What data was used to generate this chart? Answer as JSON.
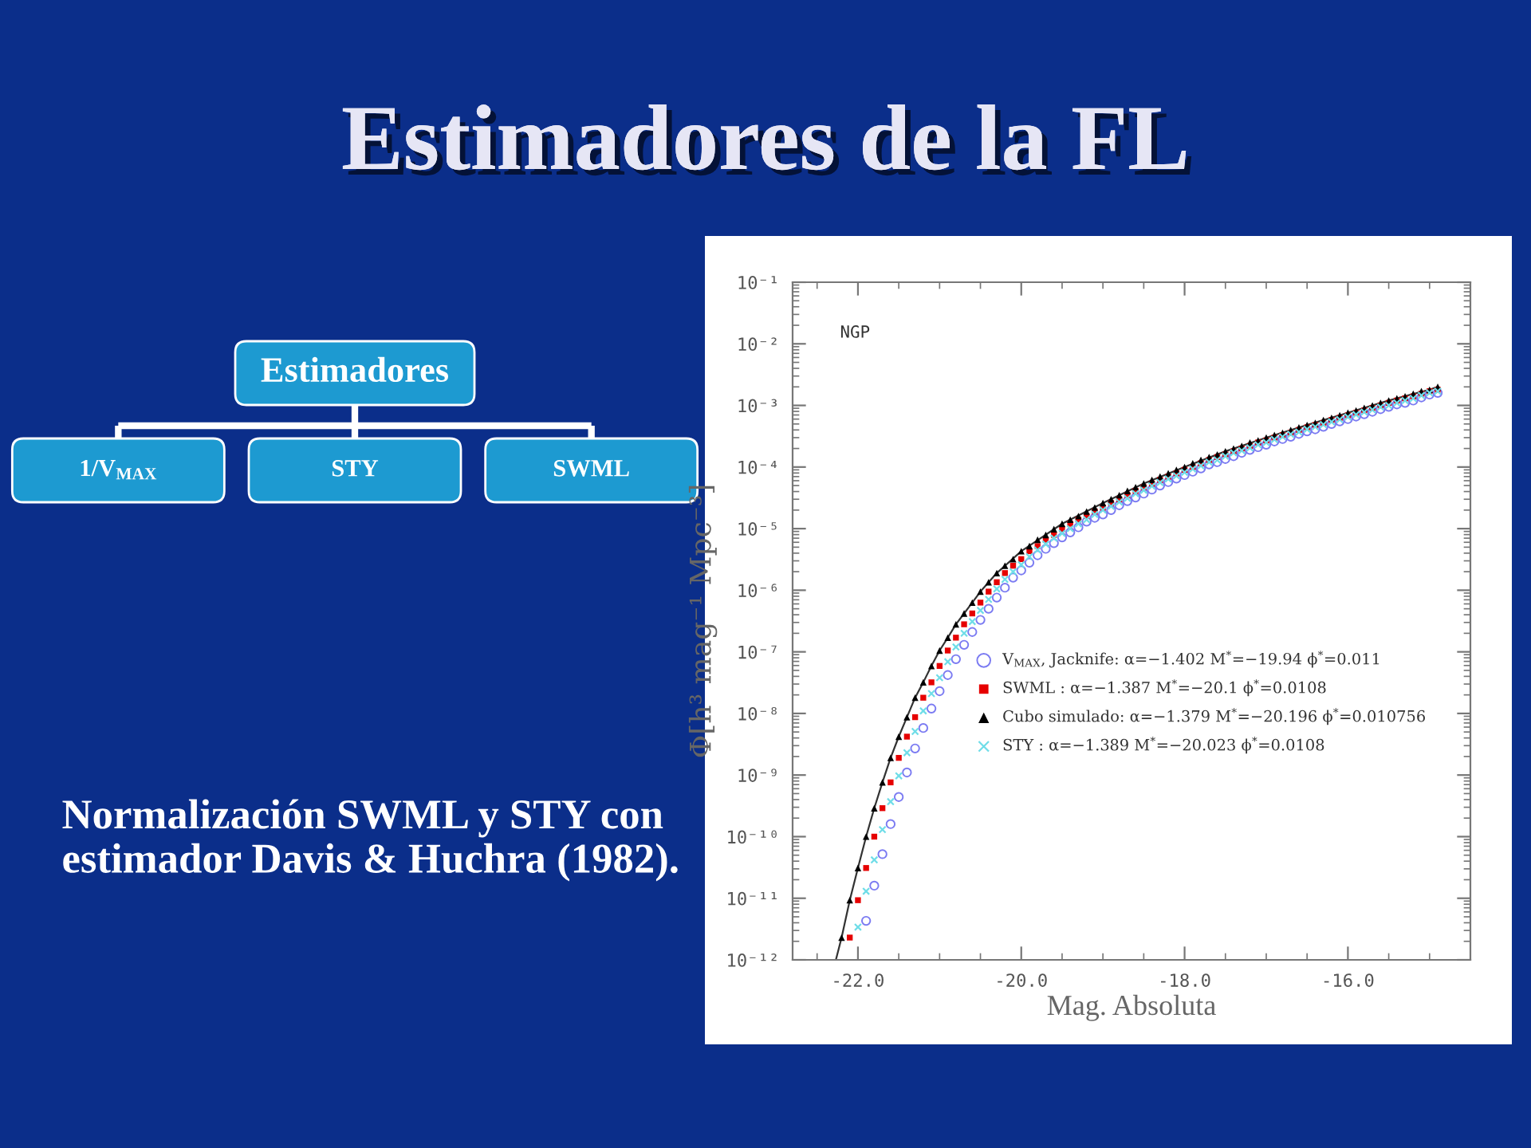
{
  "chart_data": [
    {
      "type": "other",
      "title": "Estimadores",
      "categories": [
        "1/V$_{MAX}$",
        "STY",
        "SWML"
      ]
    },
    {
      "type": "scatter",
      "title": "Estimadores de la FL",
      "xlabel": "Mag. Absoluta",
      "ylabel": "Φ[h³ mag⁻¹ Mpc⁻³]",
      "annotations": [
        "NGP",
        "Normalización SWML y STY con estimador Davis & Huchra (1982)."
      ],
      "log": "y",
      "xlim": [
        -22.8,
        -14.5
      ],
      "ylim": [
        1e-12,
        0.1
      ],
      "legend": "lower right",
      "xticks": [
        {
          "value": -22,
          "label": "-22.0"
        },
        {
          "value": -20,
          "label": "-20.0"
        },
        {
          "value": -18,
          "label": "-18.0"
        },
        {
          "value": -16,
          "label": "-16.0"
        },
        {
          "value": -22.5,
          "label": null
        },
        {
          "value": -21.5,
          "label": null
        },
        {
          "value": -21,
          "label": null
        },
        {
          "value": -20.5,
          "label": null
        },
        {
          "value": -19.5,
          "label": null
        },
        {
          "value": -19,
          "label": null
        },
        {
          "value": -18.5,
          "label": null
        },
        {
          "value": -17.5,
          "label": null
        },
        {
          "value": -17,
          "label": null
        },
        {
          "value": -16.5,
          "label": null
        },
        {
          "value": -15.5,
          "label": null
        },
        {
          "value": -15,
          "label": null
        }
      ],
      "yticks": [
        {
          "value": 1e-12,
          "label": "10⁻¹²"
        },
        {
          "value": 1e-11,
          "label": "10⁻¹¹"
        },
        {
          "value": 1e-10,
          "label": "10⁻¹⁰"
        },
        {
          "value": 1e-09,
          "label": "10⁻⁹"
        },
        {
          "value": 1e-08,
          "label": "10⁻⁸"
        },
        {
          "value": 1e-07,
          "label": "10⁻⁷"
        },
        {
          "value": 1e-06,
          "label": "10⁻⁶"
        },
        {
          "value": 1e-05,
          "label": "10⁻⁵"
        },
        {
          "value": 0.0001,
          "label": "10⁻⁴"
        },
        {
          "value": 0.001,
          "label": "10⁻³"
        },
        {
          "value": 0.01,
          "label": "10⁻²"
        },
        {
          "value": 0.1,
          "label": "10⁻¹"
        },
        {
          "value": 2e-12,
          "label": null
        },
        {
          "value": 3e-12,
          "label": null
        },
        {
          "value": 4e-12,
          "label": null
        },
        {
          "value": 5e-12,
          "label": null
        },
        {
          "value": 6e-12,
          "label": null
        },
        {
          "value": 7e-12,
          "label": null
        },
        {
          "value": 8e-12,
          "label": null
        },
        {
          "value": 9e-12,
          "label": null
        },
        {
          "value": 2e-11,
          "label": null
        },
        {
          "value": 3e-11,
          "label": null
        },
        {
          "value": 4e-11,
          "label": null
        },
        {
          "value": 5e-11,
          "label": null
        },
        {
          "value": 6e-11,
          "label": null
        },
        {
          "value": 7e-11,
          "label": null
        },
        {
          "value": 8e-11,
          "label": null
        },
        {
          "value": 9e-11,
          "label": null
        },
        {
          "value": 2e-10,
          "label": null
        },
        {
          "value": 3e-10,
          "label": null
        },
        {
          "value": 4e-10,
          "label": null
        },
        {
          "value": 5e-10,
          "label": null
        },
        {
          "value": 6e-10,
          "label": null
        },
        {
          "value": 7e-10,
          "label": null
        },
        {
          "value": 8e-10,
          "label": null
        },
        {
          "value": 9e-10,
          "label": null
        },
        {
          "value": 2e-09,
          "label": null
        },
        {
          "value": 3e-09,
          "label": null
        },
        {
          "value": 4e-09,
          "label": null
        },
        {
          "value": 5e-09,
          "label": null
        },
        {
          "value": 6e-09,
          "label": null
        },
        {
          "value": 7e-09,
          "label": null
        },
        {
          "value": 8e-09,
          "label": null
        },
        {
          "value": 9e-09,
          "label": null
        },
        {
          "value": 2e-08,
          "label": null
        },
        {
          "value": 3e-08,
          "label": null
        },
        {
          "value": 4e-08,
          "label": null
        },
        {
          "value": 5e-08,
          "label": null
        },
        {
          "value": 6e-08,
          "label": null
        },
        {
          "value": 7e-08,
          "label": null
        },
        {
          "value": 8e-08,
          "label": null
        },
        {
          "value": 9e-08,
          "label": null
        },
        {
          "value": 2e-07,
          "label": null
        },
        {
          "value": 3e-07,
          "label": null
        },
        {
          "value": 4e-07,
          "label": null
        },
        {
          "value": 5e-07,
          "label": null
        },
        {
          "value": 6e-07,
          "label": null
        },
        {
          "value": 7e-07,
          "label": null
        },
        {
          "value": 8e-07,
          "label": null
        },
        {
          "value": 9e-07,
          "label": null
        },
        {
          "value": 2e-06,
          "label": null
        },
        {
          "value": 3e-06,
          "label": null
        },
        {
          "value": 4e-06,
          "label": null
        },
        {
          "value": 5e-06,
          "label": null
        },
        {
          "value": 6e-06,
          "label": null
        },
        {
          "value": 7e-06,
          "label": null
        },
        {
          "value": 8e-06,
          "label": null
        },
        {
          "value": 9e-06,
          "label": null
        },
        {
          "value": 2e-05,
          "label": null
        },
        {
          "value": 3e-05,
          "label": null
        },
        {
          "value": 4e-05,
          "label": null
        },
        {
          "value": 5e-05,
          "label": null
        },
        {
          "value": 6e-05,
          "label": null
        },
        {
          "value": 7e-05,
          "label": null
        },
        {
          "value": 8e-05,
          "label": null
        },
        {
          "value": 9e-05,
          "label": null
        },
        {
          "value": 0.0002,
          "label": null
        },
        {
          "value": 0.0003,
          "label": null
        },
        {
          "value": 0.0004,
          "label": null
        },
        {
          "value": 0.0005,
          "label": null
        },
        {
          "value": 0.0006,
          "label": null
        },
        {
          "value": 0.0007,
          "label": null
        },
        {
          "value": 0.0008,
          "label": null
        },
        {
          "value": 0.0009,
          "label": null
        },
        {
          "value": 0.002,
          "label": null
        },
        {
          "value": 0.003,
          "label": null
        },
        {
          "value": 0.004,
          "label": null
        },
        {
          "value": 0.005,
          "label": null
        },
        {
          "value": 0.006,
          "label": null
        },
        {
          "value": 0.007,
          "label": null
        },
        {
          "value": 0.008,
          "label": null
        },
        {
          "value": 0.009,
          "label": null
        },
        {
          "value": 0.02,
          "label": null
        },
        {
          "value": 0.03,
          "label": null
        },
        {
          "value": 0.04,
          "label": null
        },
        {
          "value": 0.05,
          "label": null
        },
        {
          "value": 0.06,
          "label": null
        },
        {
          "value": 0.07,
          "label": null
        },
        {
          "value": 0.08,
          "label": null
        },
        {
          "value": 0.09,
          "label": null
        }
      ],
      "x": [
        -22.2,
        -22.1,
        -22.0,
        -21.9,
        -21.8,
        -21.7,
        -21.6,
        -21.5,
        -21.4,
        -21.3,
        -21.2,
        -21.1,
        -21.0,
        -20.9,
        -20.8,
        -20.7,
        -20.6,
        -20.5,
        -20.4,
        -20.3,
        -20.2,
        -20.1,
        -20.0,
        -19.9,
        -19.8,
        -19.7,
        -19.6,
        -19.5,
        -19.4,
        -19.3,
        -19.2,
        -19.1,
        -19.0,
        -18.9,
        -18.8,
        -18.7,
        -18.6,
        -18.5,
        -18.4,
        -18.3,
        -18.2,
        -18.1,
        -18.0,
        -17.9,
        -17.8,
        -17.7,
        -17.6,
        -17.5,
        -17.4,
        -17.3,
        -17.2,
        -17.1,
        -17.0,
        -16.9,
        -16.8,
        -16.7,
        -16.6,
        -16.5,
        -16.4,
        -16.3,
        -16.2,
        -16.1,
        -16.0,
        -15.9,
        -15.8,
        -15.7,
        -15.6,
        -15.5,
        -15.4,
        -15.3,
        -15.2,
        -15.1,
        -15.0,
        -14.9
      ],
      "series": [
        {
          "type": "line",
          "color": "#333333",
          "line_style": "solid",
          "x": [
            -22.27,
            -22.2,
            -22.1,
            -22.0,
            -21.9,
            -21.8,
            -21.7,
            -21.6,
            -21.5,
            -21.4,
            -21.3,
            -21.2,
            -21.1,
            -21.0,
            -20.9,
            -20.8,
            -20.7,
            -20.6,
            -20.5,
            -20.3,
            -20.0,
            -19.5,
            -19.0,
            -18.5,
            -18.0,
            -17.5,
            -17.0,
            -16.5,
            -16.0,
            -15.5,
            -15.0,
            -14.9
          ],
          "values": [
            1e-12,
            2.3e-12,
            9.3e-12,
            3.1e-11,
            1e-10,
            2.9e-10,
            7.6e-10,
            1.9e-09,
            4.2e-09,
            8.7e-09,
            1.8e-08,
            3.2e-08,
            5.9e-08,
            1.05e-07,
            1.7e-07,
            2.8e-07,
            4.2e-07,
            6.3e-07,
            9.5e-07,
            1.9e-06,
            4.3e-06,
            1.2e-05,
            2.6e-05,
            5.4e-05,
            0.0001,
            0.00018,
            0.0003,
            0.00048,
            0.00076,
            0.0012,
            0.0018,
            0.002
          ]
        },
        {
          "name": "V$_{MAX}$, Jacknife: α=−1.402 M$^{*}$=−19.94 ϕ$^{*}$=0.011",
          "color": "#7b7bf2",
          "marker": "circle",
          "values": [
            null,
            null,
            null,
            4.3e-12,
            1.6e-11,
            5.2e-11,
            1.6e-10,
            4.4e-10,
            1.1e-09,
            2.7e-09,
            5.8e-09,
            1.2e-08,
            2.3e-08,
            4.2e-08,
            7.6e-08,
            1.3e-07,
            2.1e-07,
            3.3e-07,
            5e-07,
            7.6e-07,
            1.1e-06,
            1.6e-06,
            2.1e-06,
            2.8e-06,
            3.7e-06,
            4.7e-06,
            5.8e-06,
            7.2e-06,
            8.7e-06,
            1.05e-05,
            1.3e-05,
            1.5e-05,
            1.7e-05,
            2e-05,
            2.4e-05,
            2.8e-05,
            3.2e-05,
            3.7e-05,
            4.3e-05,
            5e-05,
            5.7e-05,
            6.5e-05,
            7.4e-05,
            8.4e-05,
            9.5e-05,
            0.00011,
            0.00012,
            0.000135,
            0.00015,
            0.00017,
            0.00019,
            0.00021,
            0.00023,
            0.00026,
            0.000285,
            0.00031,
            0.000345,
            0.00038,
            0.00041,
            0.00045,
            0.0005,
            0.00055,
            0.0006,
            0.00066,
            0.00072,
            0.00079,
            0.00087,
            0.00095,
            0.00104,
            0.0011,
            0.0012,
            0.00135,
            0.0015,
            0.0016
          ]
        },
        {
          "name": "SWML : α=−1.387 M$^{*}$=−20.1 ϕ$^{*}$=0.0108",
          "color": "#e60000",
          "marker": "square",
          "values": [
            null,
            2.3e-12,
            9.3e-12,
            3.1e-11,
            1e-10,
            2.9e-10,
            7.6e-10,
            1.9e-09,
            4.2e-09,
            8.7e-09,
            1.8e-08,
            3.2e-08,
            5.9e-08,
            1.05e-07,
            1.7e-07,
            2.8e-07,
            4.2e-07,
            6.3e-07,
            9.5e-07,
            1.35e-06,
            1.9e-06,
            2.5e-06,
            3.2e-06,
            4.3e-06,
            5.2e-06,
            6.6e-06,
            7.9e-06,
            9.8e-06,
            1.2e-05,
            1.4e-05,
            1.6e-05,
            1.9e-05,
            2.2e-05,
            2.6e-05,
            3e-05,
            3.5e-05,
            4.1e-05,
            4.7e-05,
            5.4e-05,
            6.2e-05,
            7e-05,
            7.9e-05,
            9e-05,
            0.0001,
            0.000115,
            0.00013,
            0.000145,
            0.00016,
            0.00018,
            0.0002,
            0.00022,
            0.00025,
            0.00027,
            0.0003,
            0.00033,
            0.00036,
            0.0004,
            0.00044,
            0.00048,
            0.00052,
            0.00058,
            0.00063,
            0.00069,
            0.00076,
            0.00083,
            0.00091,
            0.001,
            0.0011,
            0.0012,
            0.0013,
            0.0014,
            0.00155,
            0.0017,
            0.0018
          ]
        },
        {
          "name": "Cubo simulado: α=−1.379 M$^{*}$=−20.196 ϕ$^{*}$=0.010756",
          "color": "#000000",
          "marker": "triangle",
          "values": [
            2.3e-12,
            9.3e-12,
            3.1e-11,
            1e-10,
            2.9e-10,
            7.6e-10,
            1.9e-09,
            4.2e-09,
            8.7e-09,
            1.8e-08,
            3.2e-08,
            5.9e-08,
            1.05e-07,
            1.7e-07,
            2.8e-07,
            4.2e-07,
            6.3e-07,
            9.5e-07,
            1.35e-06,
            1.9e-06,
            2.5e-06,
            3.2e-06,
            4.3e-06,
            5.2e-06,
            6.6e-06,
            7.9e-06,
            9.8e-06,
            1.2e-05,
            1.4e-05,
            1.6e-05,
            1.9e-05,
            2.2e-05,
            2.6e-05,
            3e-05,
            3.5e-05,
            4.1e-05,
            4.7e-05,
            5.4e-05,
            6.2e-05,
            7e-05,
            7.9e-05,
            9e-05,
            0.0001,
            0.000115,
            0.00013,
            0.000145,
            0.00016,
            0.00018,
            0.0002,
            0.00022,
            0.00025,
            0.00027,
            0.0003,
            0.00033,
            0.00036,
            0.0004,
            0.00044,
            0.00048,
            0.00052,
            0.00058,
            0.00063,
            0.00069,
            0.00076,
            0.00083,
            0.00091,
            0.001,
            0.0011,
            0.0012,
            0.0013,
            0.0014,
            0.00155,
            0.0017,
            0.0018,
            0.002
          ]
        },
        {
          "name": "STY : α=−1.389 M$^{*}$=−20.023 ϕ$^{*}$=0.0108",
          "color": "#6fdde8",
          "marker": "cross",
          "values": [
            null,
            null,
            3.4e-12,
            1.3e-11,
            4.2e-11,
            1.3e-10,
            3.7e-10,
            9.7e-10,
            2.3e-09,
            5.1e-09,
            1.1e-08,
            2.1e-08,
            3.8e-08,
            6.9e-08,
            1.2e-07,
            2e-07,
            3.1e-07,
            4.7e-07,
            7.1e-07,
            1.05e-06,
            1.5e-06,
            2e-06,
            2.6e-06,
            3.5e-06,
            4.5e-06,
            5.6e-06,
            7e-06,
            8.4e-06,
            1e-05,
            1.2e-05,
            1.4e-05,
            1.7e-05,
            2e-05,
            2.3e-05,
            2.7e-05,
            3.1e-05,
            3.7e-05,
            4.2e-05,
            4.9e-05,
            5.6e-05,
            6.4e-05,
            7.2e-05,
            8.2e-05,
            9.3e-05,
            0.000105,
            0.00012,
            0.00013,
            0.00015,
            0.00017,
            0.000185,
            0.000205,
            0.00023,
            0.00025,
            0.00028,
            0.00031,
            0.00034,
            0.00037,
            0.00041,
            0.00045,
            0.00049,
            0.00054,
            0.00059,
            0.00065,
            0.00071,
            0.00078,
            0.00085,
            0.00094,
            0.001,
            0.0011,
            0.0012,
            0.0013,
            0.00145,
            0.0016,
            0.0017
          ]
        }
      ]
    }
  ]
}
